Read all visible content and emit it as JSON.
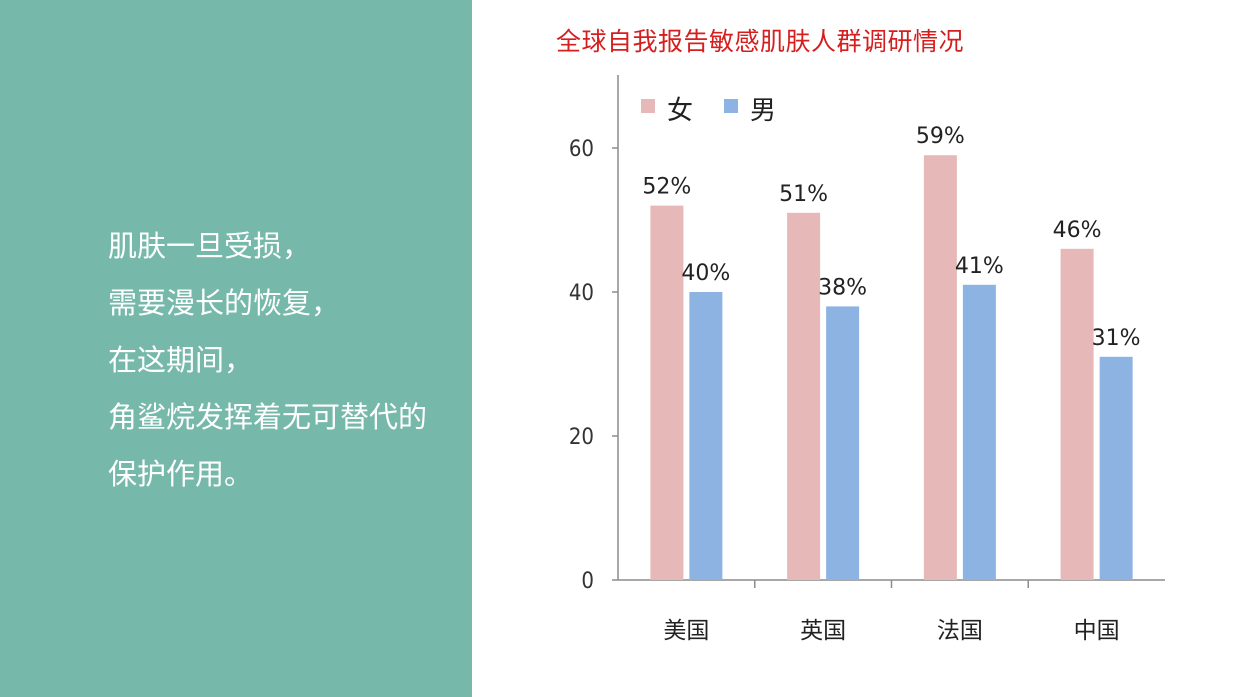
{
  "left_text": {
    "lines": [
      "肌肤一旦受损，",
      "需要漫长的恢复，",
      "在这期间，",
      "角鲨烷发挥着无可替代的",
      "保护作用。"
    ]
  },
  "chart_data": {
    "type": "bar",
    "title": "全球自我报告敏感肌肤人群调研情况",
    "categories": [
      "美国",
      "英国",
      "法国",
      "中国"
    ],
    "series": [
      {
        "name": "女",
        "values": [
          52,
          51,
          59,
          46
        ],
        "labels": [
          "52%",
          "51%",
          "59%",
          "46%"
        ],
        "color": "#e6b9b8"
      },
      {
        "name": "男",
        "values": [
          40,
          38,
          41,
          31
        ],
        "labels": [
          "40%",
          "38%",
          "41%",
          "31%"
        ],
        "color": "#8db3e2"
      }
    ],
    "yticks": [
      "0",
      "20",
      "40",
      "60"
    ],
    "ylim": [
      0,
      60
    ],
    "legend_position": "top-left",
    "grid": false
  }
}
